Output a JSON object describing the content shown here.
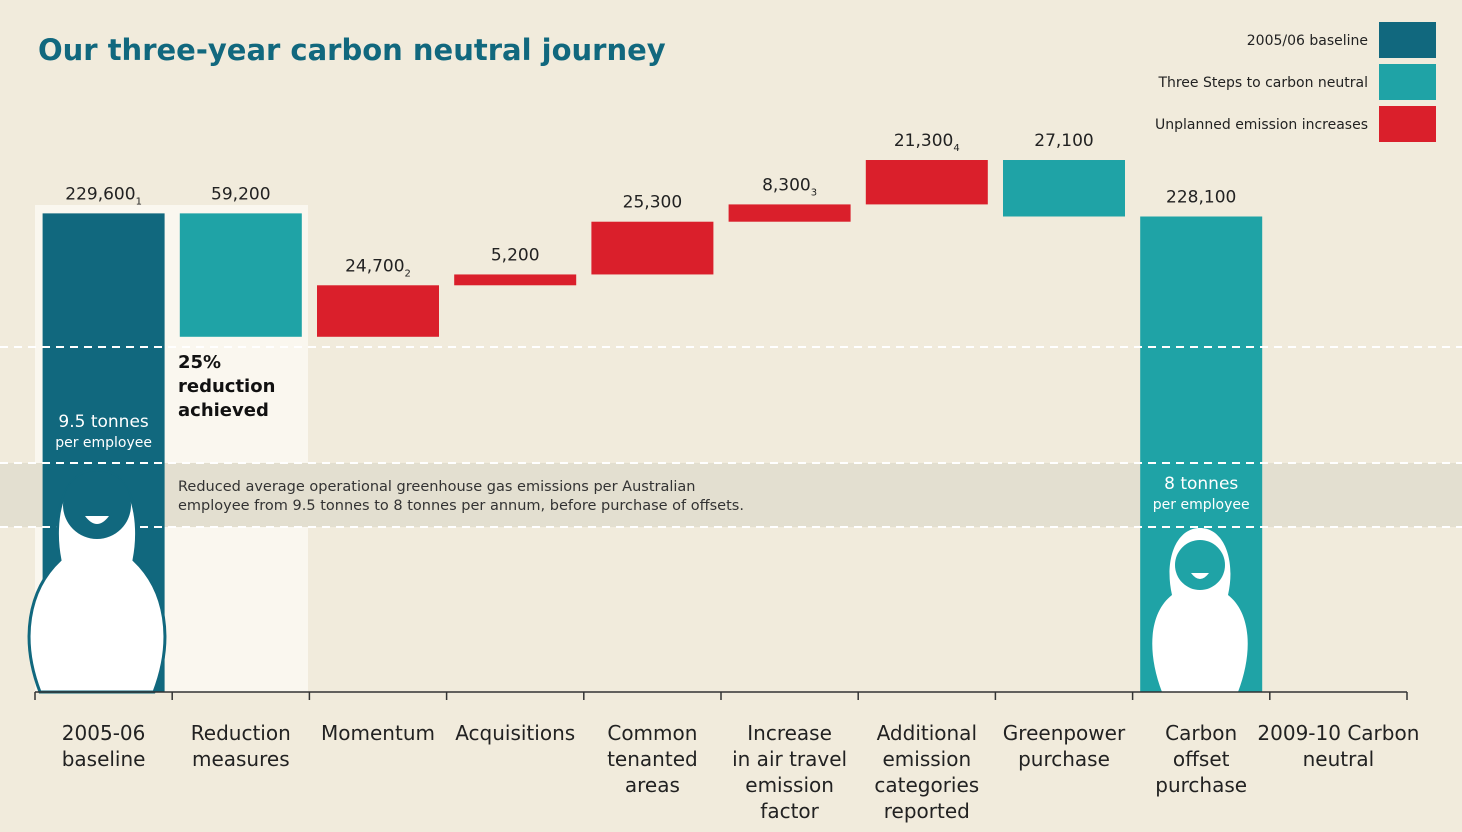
{
  "chart_data": {
    "type": "waterfall",
    "title": "Our three-year carbon neutral journey",
    "legend": [
      {
        "name": "2005/06 baseline",
        "color": "#11687e",
        "role": "base"
      },
      {
        "name": "Three Steps to carbon neutral",
        "color": "#1fa3a6",
        "role": "decrease"
      },
      {
        "name": "Unplanned emission increases",
        "color": "#da1f2b",
        "role": "increase"
      }
    ],
    "categories": [
      [
        "2005-06",
        "baseline"
      ],
      [
        "Reduction",
        "measures"
      ],
      [
        "Momentum"
      ],
      [
        "Acquisitions"
      ],
      [
        "Common",
        "tenanted",
        "areas"
      ],
      [
        "Increase",
        "in air travel",
        "emission",
        "factor"
      ],
      [
        "Additional",
        "emission",
        "categories",
        "reported"
      ],
      [
        "Greenpower",
        "purchase"
      ],
      [
        "Carbon",
        "offset",
        "purchase"
      ],
      [
        "2009-10 Carbon",
        "neutral"
      ]
    ],
    "roles": [
      "base",
      "decrease",
      "increase",
      "increase",
      "increase",
      "increase",
      "increase",
      "decrease",
      "decrease",
      null
    ],
    "values": [
      229600,
      59200,
      24700,
      5200,
      25300,
      8300,
      21300,
      27100,
      228100,
      null
    ],
    "value_labels": [
      "229,600",
      "59,200",
      "24,700",
      "5,200",
      "25,300",
      "8,300",
      "21,300",
      "27,100",
      "228,100",
      null
    ],
    "footnotes": [
      "1",
      null,
      "2",
      null,
      null,
      "3",
      "4",
      null,
      null,
      null
    ],
    "ylim": [
      0,
      260000
    ],
    "annotations": {
      "reduction": [
        "25%",
        "reduction",
        "achieved"
      ],
      "before": [
        "9.5 tonnes",
        "per employee"
      ],
      "after": [
        "8 tonnes",
        "per employee"
      ],
      "band": [
        "Reduced average operational greenhouse gas emissions per Australian",
        "employee from 9.5 tonnes to 8 tonnes per annum, before purchase of offsets."
      ]
    }
  }
}
